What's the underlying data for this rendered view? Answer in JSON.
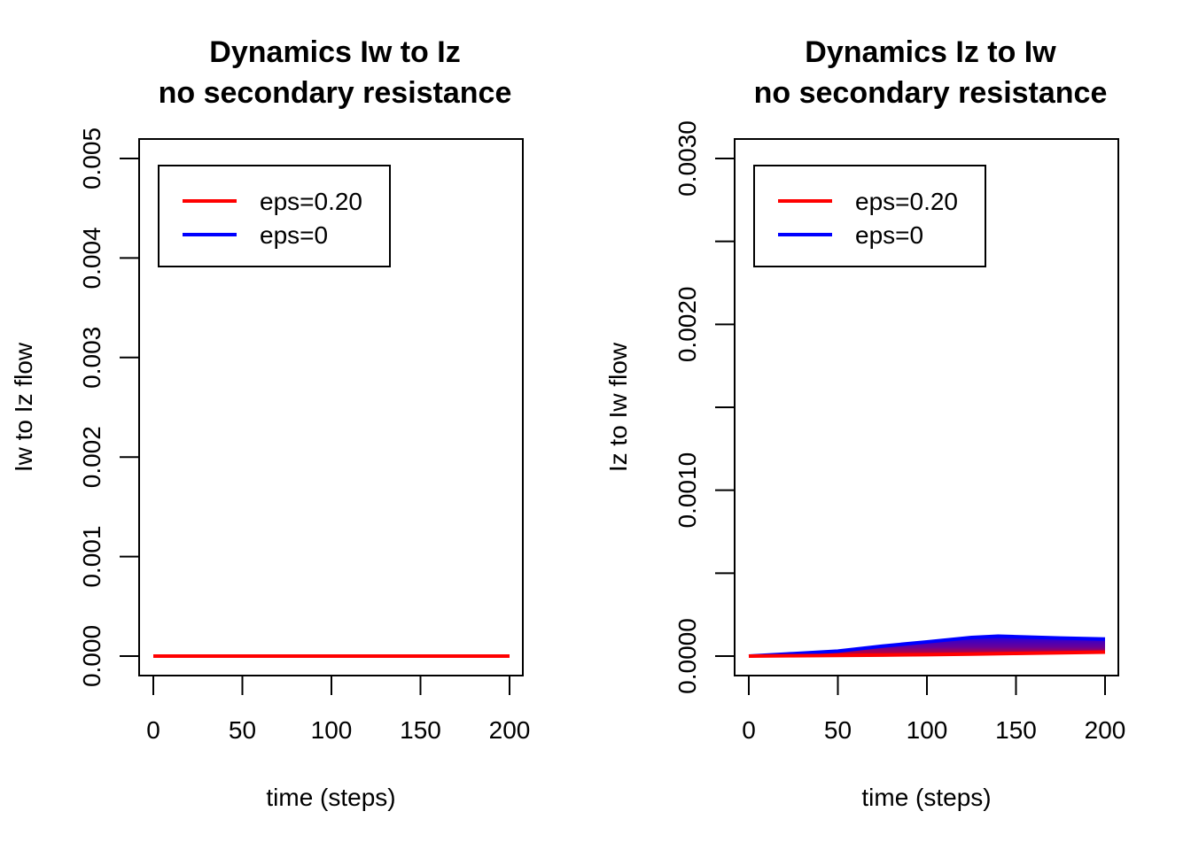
{
  "chart_data": [
    {
      "type": "line",
      "title": [
        "Dynamics Iw to Iz",
        "no secondary resistance"
      ],
      "xlabel": "time (steps)",
      "ylabel": "Iw to Iz flow",
      "xlim": [
        0,
        200
      ],
      "ylim": [
        0,
        0.005
      ],
      "xticks": [
        0,
        50,
        100,
        150,
        200
      ],
      "yticks": [
        0,
        0.001,
        0.002,
        0.003,
        0.004,
        0.005
      ],
      "xtick_labels": [
        "0",
        "50",
        "100",
        "150",
        "200"
      ],
      "ytick_labels": [
        "0.000",
        "0.001",
        "0.002",
        "0.003",
        "0.004",
        "0.005"
      ],
      "grid": false,
      "legend_placement": "top-left",
      "legend": [
        {
          "label": "eps=0.20",
          "color": "#ff0000"
        },
        {
          "label": "eps=0",
          "color": "#0000ff"
        }
      ],
      "series": [
        {
          "name": "eps=0",
          "color": "#0000ff",
          "x": [
            0,
            200
          ],
          "y": [
            0,
            0
          ]
        },
        {
          "name": "eps=0.20",
          "color": "#ff0000",
          "x": [
            0,
            200
          ],
          "y": [
            0,
            0
          ]
        }
      ]
    },
    {
      "type": "line",
      "title": [
        "Dynamics Iz to Iw",
        "no secondary resistance"
      ],
      "xlabel": "time (steps)",
      "ylabel": "Iz to Iw flow",
      "xlim": [
        0,
        200
      ],
      "ylim": [
        0,
        0.003
      ],
      "xticks": [
        0,
        50,
        100,
        150,
        200
      ],
      "yticks": [
        0,
        0.0005,
        0.001,
        0.0015,
        0.002,
        0.0025,
        0.003
      ],
      "xtick_labels": [
        "0",
        "50",
        "100",
        "150",
        "200"
      ],
      "ytick_labels": [
        "0.0000",
        "",
        "0.0010",
        "",
        "0.0020",
        "",
        "0.0030"
      ],
      "grid": false,
      "legend_placement": "top-left",
      "legend": [
        {
          "label": "eps=0.20",
          "color": "#ff0000"
        },
        {
          "label": "eps=0",
          "color": "#0000ff"
        }
      ],
      "series": [
        {
          "name": "eps=0",
          "color": "#0000ff",
          "x": [
            0,
            25,
            50,
            75,
            100,
            125,
            140,
            150,
            175,
            200
          ],
          "y": [
            0,
            1.5e-05,
            3e-05,
            6e-05,
            8.57e-05,
            0.000112,
            0.00012,
            0.000117,
            0.000109,
            0.000103
          ]
        },
        {
          "name": "eps=0.20",
          "color": "#ff0000",
          "x": [
            0,
            25,
            50,
            75,
            100,
            125,
            150,
            175,
            200
          ],
          "y": [
            0,
            2e-06,
            4e-06,
            6e-06,
            9e-06,
            1.2e-05,
            1.6e-05,
            2e-05,
            2.4e-05
          ]
        }
      ]
    }
  ]
}
